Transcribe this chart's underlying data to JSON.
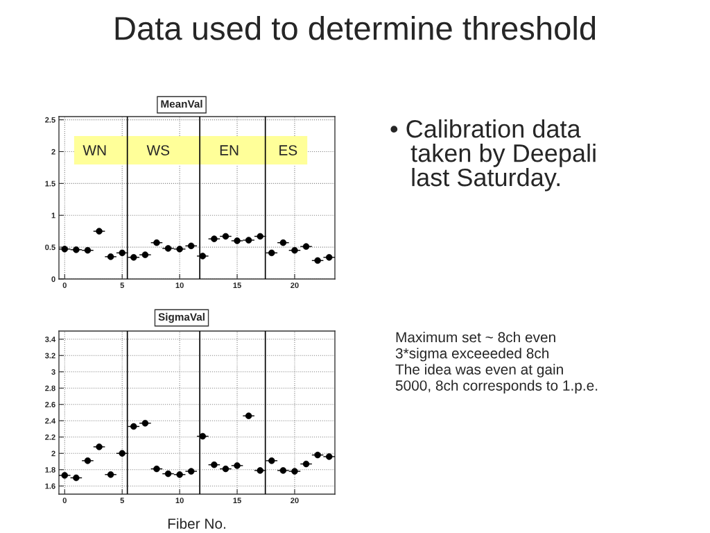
{
  "chart_data": [
    {
      "type": "other",
      "title": "Data used to determine threshold",
      "annotations": [
        "• Calibration data\n   taken by Deepali\n   last Saturday.",
        "Maximum set ~ 8ch even\n3*sigma exceeeded 8ch\nThe idea was even at gain\n5000, 8ch corresponds to 1.p.e."
      ]
    },
    {
      "type": "scatter",
      "title": "MeanVal",
      "x": [
        0,
        1,
        2,
        3,
        4,
        5,
        6,
        7,
        8,
        9,
        10,
        11,
        12,
        13,
        14,
        15,
        16,
        17,
        18,
        19,
        20,
        21,
        22,
        23
      ],
      "values": [
        0.47,
        0.46,
        0.45,
        0.75,
        0.35,
        0.41,
        0.34,
        0.38,
        0.57,
        0.48,
        0.47,
        0.52,
        0.36,
        0.63,
        0.67,
        0.6,
        0.61,
        0.67,
        0.41,
        0.57,
        0.45,
        0.51,
        0.29,
        0.34
      ],
      "xerrors": [
        0.5,
        0.5,
        0.5,
        0.5,
        0.5,
        0.5,
        0.5,
        0.5,
        0.5,
        0.5,
        0.5,
        0.5,
        0.5,
        0.5,
        0.5,
        0.5,
        0.5,
        0.5,
        0.5,
        0.5,
        0.5,
        0.5,
        0.5,
        0.5
      ],
      "color": "#000000",
      "marker": "circle",
      "xlim": [
        -0.5,
        23.5
      ],
      "ylim": [
        0,
        2.55
      ],
      "xticks": [
        0,
        5,
        10,
        15,
        20
      ],
      "yticks": [
        0,
        0.5,
        1,
        1.5,
        2,
        2.5
      ],
      "grid": true,
      "legend": false,
      "ref_lines": [
        {
          "axis": "x",
          "value": 5.45,
          "color": "#000000"
        },
        {
          "axis": "x",
          "value": 11.75,
          "color": "#000000"
        },
        {
          "axis": "x",
          "value": 17.45,
          "color": "#000000"
        }
      ],
      "annotations": [
        "WN",
        "WS",
        "EN",
        "ES"
      ]
    },
    {
      "type": "scatter",
      "title": "SigmaVal",
      "xlabel": "Fiber No.",
      "x": [
        0,
        1,
        2,
        3,
        4,
        5,
        6,
        7,
        8,
        9,
        10,
        11,
        12,
        13,
        14,
        15,
        16,
        17,
        18,
        19,
        20,
        21,
        22,
        23
      ],
      "values": [
        1.73,
        1.7,
        1.91,
        2.08,
        1.74,
        2.0,
        2.33,
        2.37,
        1.81,
        1.75,
        1.74,
        1.78,
        2.21,
        1.86,
        1.81,
        1.85,
        2.46,
        1.79,
        1.91,
        1.79,
        1.78,
        1.87,
        1.98,
        1.96
      ],
      "xerrors": [
        0.5,
        0.5,
        0.5,
        0.5,
        0.5,
        0.5,
        0.5,
        0.5,
        0.5,
        0.5,
        0.5,
        0.5,
        0.5,
        0.5,
        0.5,
        0.5,
        0.5,
        0.5,
        0.5,
        0.5,
        0.5,
        0.5,
        0.5,
        0.5
      ],
      "color": "#000000",
      "marker": "circle",
      "xlim": [
        -0.5,
        23.5
      ],
      "ylim": [
        1.5,
        3.5
      ],
      "xticks": [
        0,
        5,
        10,
        15,
        20
      ],
      "yticks": [
        1.6,
        1.8,
        2,
        2.2,
        2.4,
        2.6,
        2.8,
        3,
        3.2,
        3.4
      ],
      "grid": true,
      "legend": false,
      "ref_lines": [
        {
          "axis": "x",
          "value": 5.45,
          "color": "#000000"
        },
        {
          "axis": "x",
          "value": 11.75,
          "color": "#000000"
        },
        {
          "axis": "x",
          "value": 17.45,
          "color": "#000000"
        }
      ]
    }
  ]
}
